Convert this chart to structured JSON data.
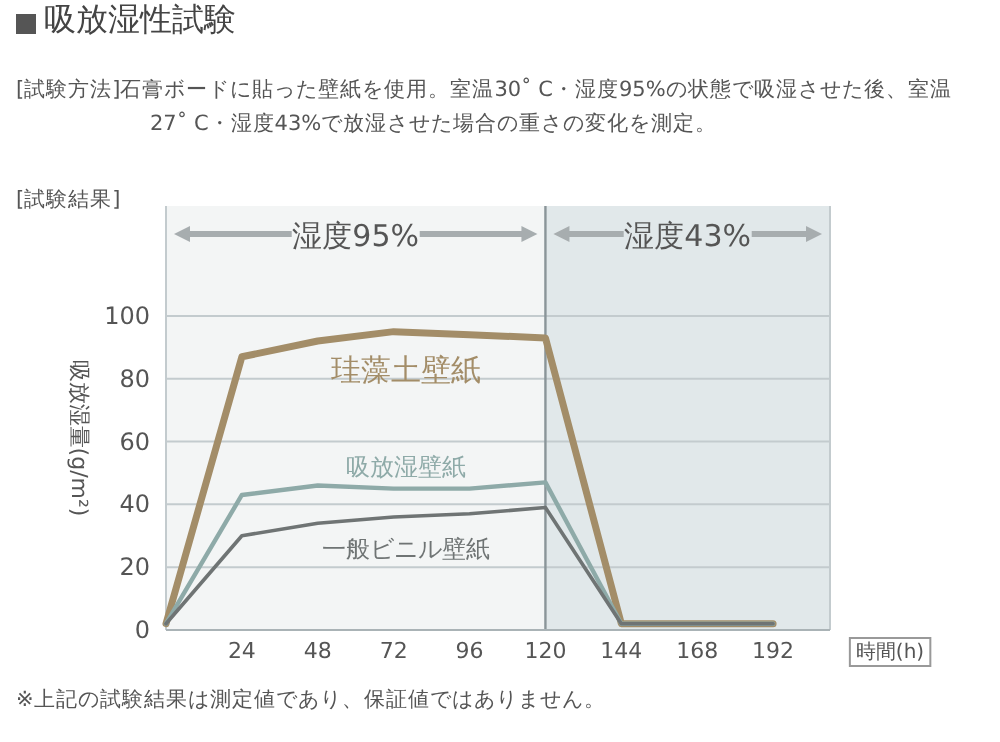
{
  "chart_data": {
    "type": "line",
    "title": "吸放湿性試験",
    "subtitle": "[試験方法]石膏ボードに貼った壁紙を使用。室温30˚ C・湿度95%の状態で吸湿させた後、室温27˚ C・湿度43%で放湿させた場合の重さの変化を測定。",
    "xlabel": "時間(h)",
    "ylabel": "吸放湿量(g/m²)",
    "annotations": [
      "[試験結果]",
      "※上記の試験結果は測定値であり、保証値ではありません。"
    ],
    "x": [
      0,
      24,
      48,
      72,
      96,
      120,
      144,
      168,
      192
    ],
    "series": [
      {
        "name": "珪藻土壁紙",
        "color": "#a38d68",
        "values": [
          2,
          87,
          92,
          95,
          94,
          93,
          2,
          2,
          2
        ]
      },
      {
        "name": "吸放湿壁紙",
        "color": "#8eaaa8",
        "values": [
          2,
          43,
          46,
          45,
          45,
          47,
          2,
          2,
          2
        ]
      },
      {
        "name": "一般ビニル壁紙",
        "color": "#6f7474",
        "values": [
          2,
          30,
          34,
          36,
          37,
          39,
          2,
          2,
          2
        ]
      }
    ],
    "ref_lines": [
      {
        "axis": "x",
        "value": 120,
        "color": "#8a9599"
      }
    ],
    "bands": [
      {
        "axis": "x",
        "from": 0,
        "to": 120,
        "label": "湿度95%",
        "color": "#f3f5f5"
      },
      {
        "axis": "x",
        "from": 120,
        "to": 210,
        "label": "湿度43%",
        "color": "#e1e8ea"
      }
    ],
    "xlim": [
      0,
      210
    ],
    "ylim": [
      0,
      135
    ],
    "xticks": [
      24,
      48,
      72,
      96,
      120,
      144,
      168,
      192
    ],
    "yticks": [
      0,
      20,
      40,
      60,
      80,
      100
    ],
    "grid": "y",
    "marker": "none",
    "line_style": "solid"
  }
}
